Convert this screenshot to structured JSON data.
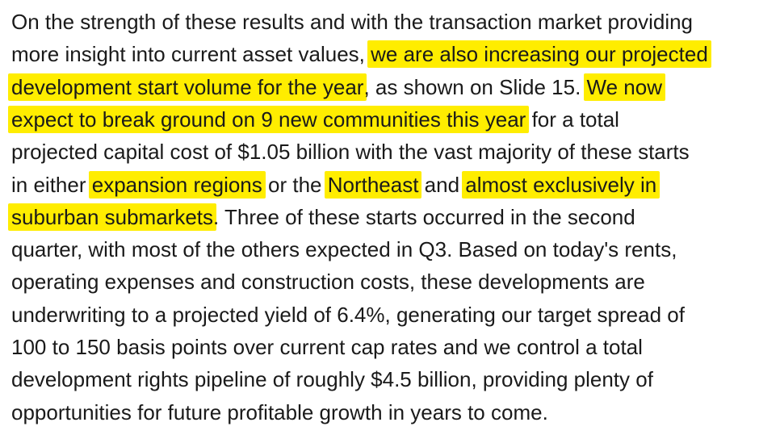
{
  "document": {
    "highlight_color": "#ffed00",
    "lines": [
      {
        "segments": [
          {
            "text": "On the strength of these results and with the transaction market providing",
            "hl": false
          }
        ]
      },
      {
        "segments": [
          {
            "text": "more insight into current asset values, ",
            "hl": false
          },
          {
            "text": "we are also increasing our projected",
            "hl": true
          }
        ]
      },
      {
        "segments": [
          {
            "text": "development start volume for the year",
            "hl": true
          },
          {
            "text": ", as shown on Slide 15. ",
            "hl": false
          },
          {
            "text": "We now",
            "hl": true
          }
        ]
      },
      {
        "segments": [
          {
            "text": "expect to break ground on 9 new communities this year",
            "hl": true
          },
          {
            "text": " for a total",
            "hl": false
          }
        ]
      },
      {
        "segments": [
          {
            "text": "projected capital cost of $1.05 billion with the vast majority of these starts",
            "hl": false
          }
        ]
      },
      {
        "segments": [
          {
            "text": "in either ",
            "hl": false
          },
          {
            "text": "expansion regions",
            "hl": true
          },
          {
            "text": " or the ",
            "hl": false
          },
          {
            "text": "Northeast",
            "hl": true
          },
          {
            "text": " and ",
            "hl": false
          },
          {
            "text": "almost exclusively in",
            "hl": true
          }
        ]
      },
      {
        "segments": [
          {
            "text": "suburban submarkets",
            "hl": true
          },
          {
            "text": ". Three of these starts occurred in the second",
            "hl": false
          }
        ]
      },
      {
        "segments": [
          {
            "text": "quarter, with most of the others expected in Q3. Based on today's rents,",
            "hl": false
          }
        ]
      },
      {
        "segments": [
          {
            "text": "operating expenses and construction costs, these developments are",
            "hl": false
          }
        ]
      },
      {
        "segments": [
          {
            "text": "underwriting to a projected yield of 6.4%, generating our target spread of",
            "hl": false
          }
        ]
      },
      {
        "segments": [
          {
            "text": "100 to 150 basis points over current cap rates and we control a total",
            "hl": false
          }
        ]
      },
      {
        "segments": [
          {
            "text": "development rights pipeline of roughly $4.5 billion, providing plenty of",
            "hl": false
          }
        ]
      },
      {
        "segments": [
          {
            "text": "opportunities for future profitable growth in years to come.",
            "hl": false
          }
        ]
      }
    ]
  }
}
